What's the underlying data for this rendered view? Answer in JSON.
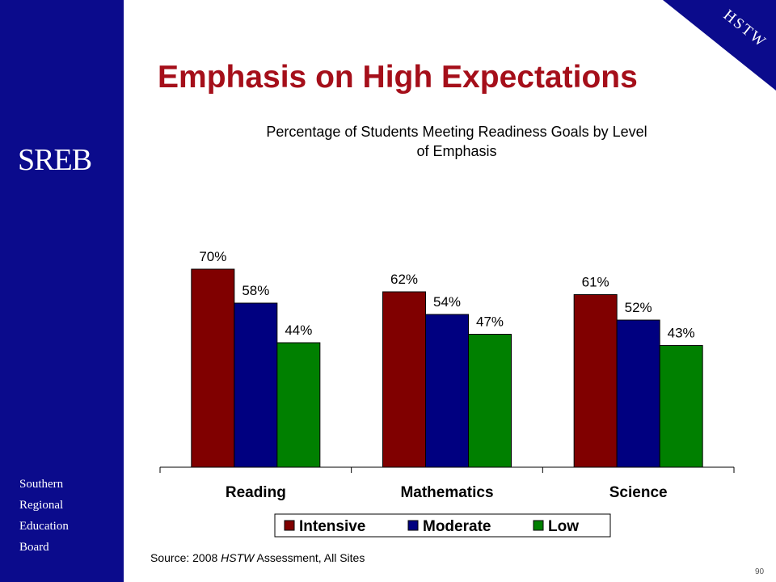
{
  "branding": {
    "logo": "SREB",
    "org_lines": [
      "Southern",
      "Regional",
      "Education",
      "Board"
    ],
    "corner_label": "HSTW",
    "sidebar_color": "#0b0b8c"
  },
  "slide": {
    "title": "Emphasis on High Expectations",
    "source_prefix": "Source: 2008 ",
    "source_italic": "HSTW",
    "source_suffix": " Assessment, All Sites",
    "page_number": "90"
  },
  "chart_data": {
    "type": "bar",
    "title_lines": [
      "Percentage of Students Meeting Readiness Goals by Level",
      "of Emphasis"
    ],
    "categories": [
      "Reading",
      "Mathematics",
      "Science"
    ],
    "series": [
      {
        "name": "Intensive",
        "color": "#800000",
        "values": [
          70,
          62,
          61
        ],
        "labels": [
          "70%",
          "62%",
          "61%"
        ]
      },
      {
        "name": "Moderate",
        "color": "#000080",
        "values": [
          58,
          54,
          52
        ],
        "labels": [
          "58%",
          "54%",
          "52%"
        ]
      },
      {
        "name": "Low",
        "color": "#008000",
        "values": [
          44,
          47,
          43
        ],
        "labels": [
          "44%",
          "47%",
          "43%"
        ]
      }
    ],
    "ylim": [
      0,
      100
    ],
    "grid": false,
    "legend_position": "bottom"
  }
}
